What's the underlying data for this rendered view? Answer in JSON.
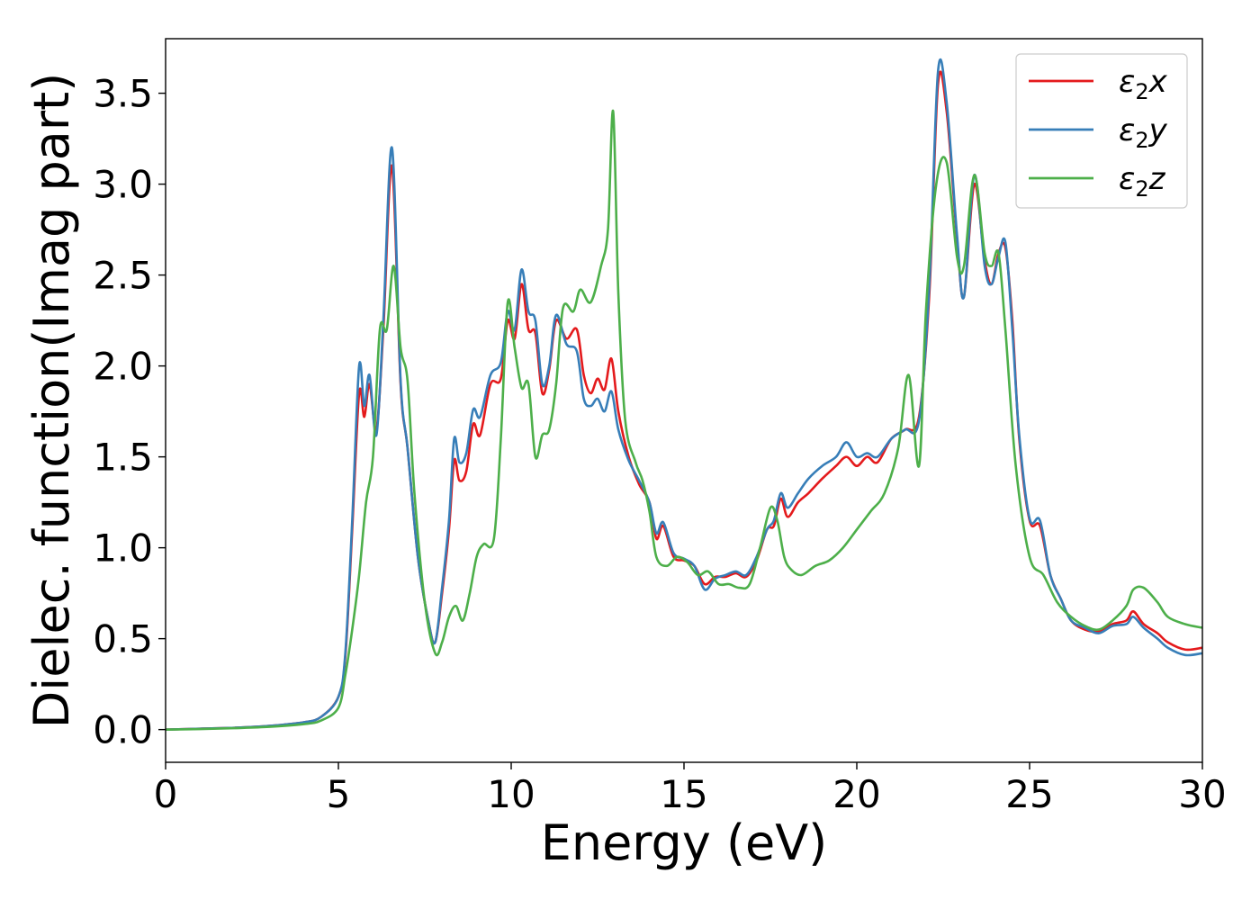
{
  "chart_data": {
    "type": "line",
    "xlabel": "Energy (eV)",
    "ylabel": "Dielec. function(Imag part)",
    "xlim": [
      0,
      30
    ],
    "ylim": [
      -0.18,
      3.8
    ],
    "xticks": [
      0,
      5,
      10,
      15,
      20,
      25,
      30
    ],
    "xtick_labels": [
      "0",
      "5",
      "10",
      "15",
      "20",
      "25",
      "30"
    ],
    "yticks": [
      0.0,
      0.5,
      1.0,
      1.5,
      2.0,
      2.5,
      3.0,
      3.5
    ],
    "ytick_labels": [
      "0.0",
      "0.5",
      "1.0",
      "1.5",
      "2.0",
      "2.5",
      "3.0",
      "3.5"
    ],
    "grid": false,
    "legend_position": "top-right",
    "series": [
      {
        "name": "ε₂x",
        "legend_base": "ε",
        "legend_sub": "2",
        "legend_suffix": "x",
        "color": "#e41a1c",
        "x": [
          0,
          1,
          2,
          3,
          4,
          4.5,
          5,
          5.2,
          5.4,
          5.6,
          5.75,
          5.9,
          6.1,
          6.3,
          6.55,
          6.8,
          7.0,
          7.3,
          7.6,
          7.8,
          8.0,
          8.2,
          8.35,
          8.5,
          8.7,
          8.9,
          9.1,
          9.4,
          9.7,
          9.9,
          10.1,
          10.3,
          10.5,
          10.7,
          10.9,
          11.1,
          11.3,
          11.6,
          11.9,
          12.1,
          12.3,
          12.5,
          12.7,
          12.9,
          13.1,
          13.4,
          13.7,
          14.0,
          14.2,
          14.4,
          14.7,
          15.0,
          15.3,
          15.6,
          15.9,
          16.2,
          16.5,
          16.8,
          17.1,
          17.4,
          17.6,
          17.8,
          18.0,
          18.3,
          18.6,
          19.0,
          19.4,
          19.7,
          20.0,
          20.3,
          20.6,
          21.0,
          21.4,
          21.8,
          22.1,
          22.35,
          22.6,
          22.9,
          23.1,
          23.4,
          23.7,
          23.9,
          24.1,
          24.3,
          24.5,
          24.7,
          25.0,
          25.3,
          25.6,
          25.9,
          26.2,
          26.6,
          27.0,
          27.4,
          27.8,
          28.0,
          28.3,
          28.7,
          29.0,
          29.5,
          30
        ],
        "values": [
          0.0,
          0.005,
          0.01,
          0.02,
          0.04,
          0.07,
          0.18,
          0.4,
          1.1,
          1.85,
          1.72,
          1.9,
          1.65,
          2.2,
          3.1,
          1.9,
          1.55,
          0.95,
          0.6,
          0.48,
          0.75,
          1.1,
          1.48,
          1.37,
          1.42,
          1.68,
          1.62,
          1.9,
          1.93,
          2.25,
          2.15,
          2.45,
          2.2,
          2.18,
          1.85,
          1.98,
          2.25,
          2.15,
          2.2,
          1.95,
          1.85,
          1.93,
          1.87,
          2.04,
          1.75,
          1.5,
          1.35,
          1.25,
          1.05,
          1.12,
          0.95,
          0.93,
          0.9,
          0.8,
          0.84,
          0.84,
          0.86,
          0.84,
          0.93,
          1.1,
          1.12,
          1.27,
          1.17,
          1.25,
          1.3,
          1.38,
          1.45,
          1.5,
          1.45,
          1.5,
          1.47,
          1.6,
          1.65,
          1.72,
          2.4,
          3.55,
          3.4,
          2.7,
          2.38,
          3.0,
          2.58,
          2.45,
          2.62,
          2.65,
          2.25,
          1.6,
          1.15,
          1.12,
          0.85,
          0.72,
          0.6,
          0.55,
          0.54,
          0.58,
          0.6,
          0.65,
          0.58,
          0.53,
          0.48,
          0.44,
          0.45
        ]
      },
      {
        "name": "ε₂y",
        "legend_base": "ε",
        "legend_sub": "2",
        "legend_suffix": "y",
        "color": "#377eb8",
        "x": [
          0,
          1,
          2,
          3,
          4,
          4.5,
          5,
          5.2,
          5.4,
          5.6,
          5.75,
          5.9,
          6.1,
          6.3,
          6.55,
          6.8,
          7.0,
          7.3,
          7.6,
          7.8,
          8.0,
          8.2,
          8.35,
          8.5,
          8.7,
          8.9,
          9.1,
          9.4,
          9.7,
          9.9,
          10.1,
          10.3,
          10.5,
          10.7,
          10.9,
          11.1,
          11.3,
          11.6,
          11.9,
          12.1,
          12.3,
          12.5,
          12.7,
          12.9,
          13.1,
          13.4,
          13.7,
          14.0,
          14.2,
          14.4,
          14.7,
          15.0,
          15.3,
          15.6,
          15.9,
          16.2,
          16.5,
          16.8,
          17.1,
          17.4,
          17.6,
          17.8,
          18.0,
          18.3,
          18.6,
          19.0,
          19.4,
          19.7,
          20.0,
          20.3,
          20.6,
          21.0,
          21.4,
          21.8,
          22.1,
          22.35,
          22.6,
          22.9,
          23.1,
          23.4,
          23.7,
          23.9,
          24.1,
          24.3,
          24.5,
          24.7,
          25.0,
          25.3,
          25.6,
          25.9,
          26.2,
          26.6,
          27.0,
          27.4,
          27.8,
          28.0,
          28.3,
          28.7,
          29.0,
          29.5,
          30
        ],
        "values": [
          0.0,
          0.005,
          0.01,
          0.02,
          0.04,
          0.07,
          0.18,
          0.42,
          1.15,
          2.0,
          1.78,
          1.95,
          1.62,
          2.25,
          3.2,
          1.92,
          1.55,
          0.95,
          0.6,
          0.48,
          0.78,
          1.15,
          1.6,
          1.47,
          1.52,
          1.76,
          1.72,
          1.95,
          2.02,
          2.3,
          2.2,
          2.53,
          2.3,
          2.25,
          1.9,
          2.0,
          2.28,
          2.12,
          2.08,
          1.82,
          1.78,
          1.82,
          1.75,
          1.86,
          1.65,
          1.48,
          1.37,
          1.25,
          1.08,
          1.14,
          0.97,
          0.94,
          0.9,
          0.77,
          0.83,
          0.85,
          0.87,
          0.85,
          0.95,
          1.1,
          1.15,
          1.3,
          1.22,
          1.3,
          1.38,
          1.45,
          1.5,
          1.58,
          1.5,
          1.52,
          1.5,
          1.6,
          1.65,
          1.7,
          2.45,
          3.62,
          3.45,
          2.72,
          2.38,
          3.05,
          2.55,
          2.45,
          2.6,
          2.68,
          2.2,
          1.62,
          1.16,
          1.15,
          0.85,
          0.72,
          0.6,
          0.56,
          0.53,
          0.57,
          0.58,
          0.62,
          0.56,
          0.5,
          0.45,
          0.41,
          0.42
        ]
      },
      {
        "name": "ε₂z",
        "legend_base": "ε",
        "legend_sub": "2",
        "legend_suffix": "z",
        "color": "#4daf4a",
        "x": [
          0,
          1,
          2,
          3,
          4,
          4.5,
          5,
          5.2,
          5.4,
          5.6,
          5.8,
          6.0,
          6.2,
          6.4,
          6.6,
          6.8,
          7.0,
          7.2,
          7.5,
          7.8,
          8.0,
          8.2,
          8.4,
          8.6,
          8.8,
          9.0,
          9.2,
          9.5,
          9.7,
          9.9,
          10.1,
          10.3,
          10.5,
          10.7,
          10.9,
          11.1,
          11.3,
          11.5,
          11.8,
          12.0,
          12.3,
          12.6,
          12.8,
          12.95,
          13.1,
          13.3,
          13.6,
          13.8,
          14.0,
          14.2,
          14.5,
          14.8,
          15.1,
          15.4,
          15.7,
          16.0,
          16.3,
          16.6,
          16.9,
          17.2,
          17.5,
          17.7,
          17.9,
          18.1,
          18.4,
          18.8,
          19.2,
          19.6,
          20.0,
          20.4,
          20.8,
          21.2,
          21.5,
          21.8,
          22.0,
          22.3,
          22.6,
          22.9,
          23.1,
          23.4,
          23.7,
          23.9,
          24.1,
          24.3,
          24.6,
          25.0,
          25.4,
          25.8,
          26.2,
          26.6,
          27.0,
          27.4,
          27.8,
          28.0,
          28.3,
          28.7,
          29.0,
          29.5,
          30
        ],
        "values": [
          0.0,
          0.003,
          0.008,
          0.015,
          0.03,
          0.05,
          0.12,
          0.3,
          0.55,
          0.85,
          1.25,
          1.5,
          2.2,
          2.2,
          2.55,
          2.1,
          1.92,
          1.3,
          0.7,
          0.42,
          0.48,
          0.62,
          0.68,
          0.6,
          0.75,
          0.95,
          1.02,
          1.05,
          1.6,
          2.35,
          2.1,
          1.88,
          1.9,
          1.5,
          1.62,
          1.65,
          1.9,
          2.32,
          2.3,
          2.42,
          2.35,
          2.55,
          2.75,
          3.4,
          2.4,
          1.7,
          1.47,
          1.37,
          1.2,
          0.95,
          0.9,
          0.95,
          0.92,
          0.85,
          0.87,
          0.8,
          0.8,
          0.78,
          0.8,
          1.0,
          1.22,
          1.15,
          0.95,
          0.88,
          0.85,
          0.9,
          0.93,
          1.0,
          1.1,
          1.2,
          1.3,
          1.55,
          1.95,
          1.45,
          2.3,
          3.0,
          3.12,
          2.6,
          2.55,
          3.05,
          2.62,
          2.55,
          2.62,
          2.2,
          1.45,
          0.95,
          0.85,
          0.7,
          0.62,
          0.57,
          0.55,
          0.6,
          0.68,
          0.77,
          0.78,
          0.7,
          0.62,
          0.58,
          0.56
        ]
      }
    ]
  }
}
